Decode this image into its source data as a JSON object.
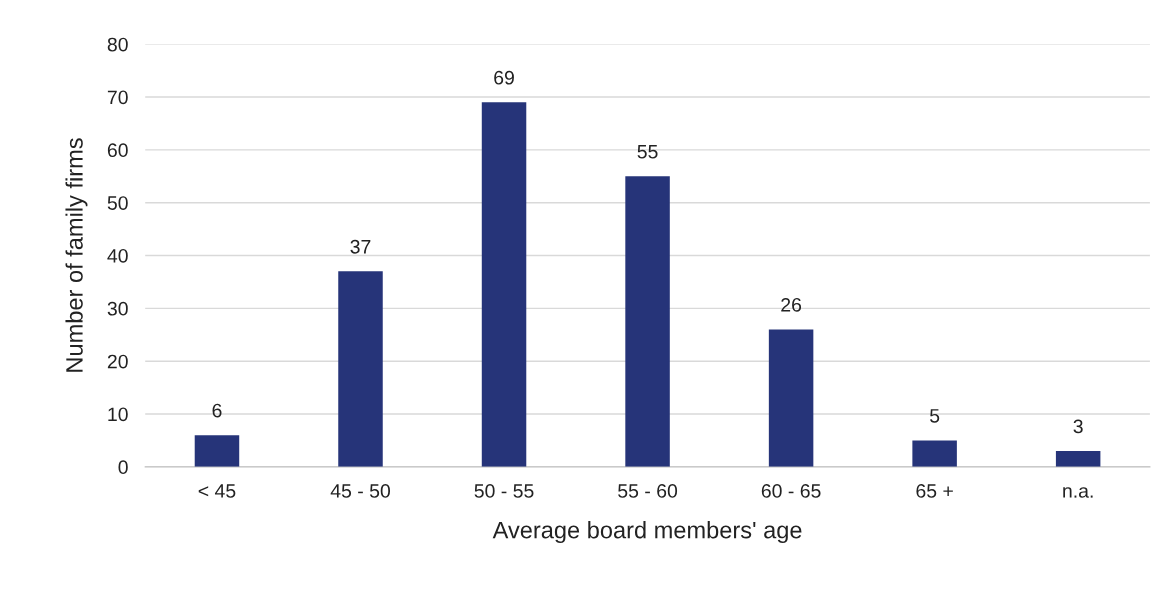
{
  "chart_data": {
    "type": "bar",
    "xlabel": "Average board members' age",
    "ylabel": "Number of family firms",
    "categories": [
      "< 45",
      "45 - 50",
      "50 - 55",
      "55 - 60",
      "60 - 65",
      "65 +",
      "n.a."
    ],
    "values": [
      6,
      37,
      69,
      55,
      26,
      5,
      3
    ],
    "color": "#263479",
    "ylim": [
      0,
      80
    ],
    "yticks": [
      0,
      10,
      20,
      30,
      40,
      50,
      60,
      70,
      80
    ],
    "grid": "y",
    "data_labels": true,
    "legend": false
  }
}
